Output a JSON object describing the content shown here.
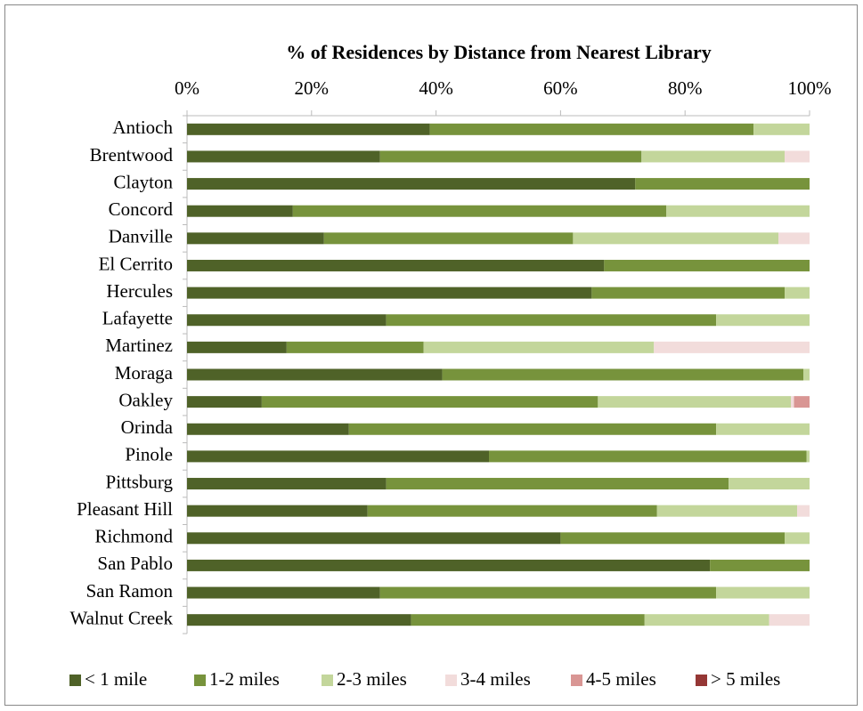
{
  "chart_data": {
    "type": "stacked-bar-horizontal",
    "title": "% of Residences by Distance from Nearest Library",
    "categories": [
      "Antioch",
      "Brentwood",
      "Clayton",
      "Concord",
      "Danville",
      "El Cerrito",
      "Hercules",
      "Lafayette",
      "Martinez",
      "Moraga",
      "Oakley",
      "Orinda",
      "Pinole",
      "Pittsburg",
      "Pleasant Hill",
      "Richmond",
      "San Pablo",
      "San Ramon",
      "Walnut Creek"
    ],
    "series": [
      {
        "name": "< 1 mile",
        "color": "#4f6228",
        "values": [
          39,
          31,
          72,
          17,
          22,
          67,
          65,
          32,
          16,
          41,
          12,
          26,
          48.5,
          32,
          29,
          60,
          84,
          31,
          36
        ]
      },
      {
        "name": "1-2 miles",
        "color": "#77933c",
        "values": [
          52,
          42,
          28,
          60,
          40,
          33,
          31,
          53,
          22,
          58,
          54,
          59,
          51,
          55,
          46.5,
          36,
          16,
          54,
          37.5
        ]
      },
      {
        "name": "2-3 miles",
        "color": "#c3d69b",
        "values": [
          9,
          23,
          0,
          23,
          33,
          0,
          4,
          15,
          37,
          1,
          31,
          15,
          0.5,
          13,
          22.5,
          4,
          0,
          15,
          20
        ]
      },
      {
        "name": "3-4 miles",
        "color": "#f2dcdb",
        "values": [
          0,
          4,
          0,
          0,
          5,
          0,
          0,
          0,
          25,
          0,
          0.5,
          0,
          0,
          0,
          2,
          0,
          0,
          0,
          6.5
        ]
      },
      {
        "name": "4-5 miles",
        "color": "#d99694",
        "values": [
          0,
          0,
          0,
          0,
          0,
          0,
          0,
          0,
          0,
          0,
          2.5,
          0,
          0,
          0,
          0,
          0,
          0,
          0,
          0
        ]
      },
      {
        "name": "> 5 miles",
        "color": "#953735",
        "values": [
          0,
          0,
          0,
          0,
          0,
          0,
          0,
          0,
          0,
          0,
          0,
          0,
          0,
          0,
          0,
          0,
          0,
          0,
          0
        ]
      }
    ],
    "xlim": [
      0,
      100
    ],
    "xticks": [
      {
        "value": 0,
        "label": "0%"
      },
      {
        "value": 20,
        "label": "20%"
      },
      {
        "value": 40,
        "label": "40%"
      },
      {
        "value": 60,
        "label": "60%"
      },
      {
        "value": 80,
        "label": "80%"
      },
      {
        "value": 100,
        "label": "100%"
      }
    ],
    "legend": "bottom"
  }
}
